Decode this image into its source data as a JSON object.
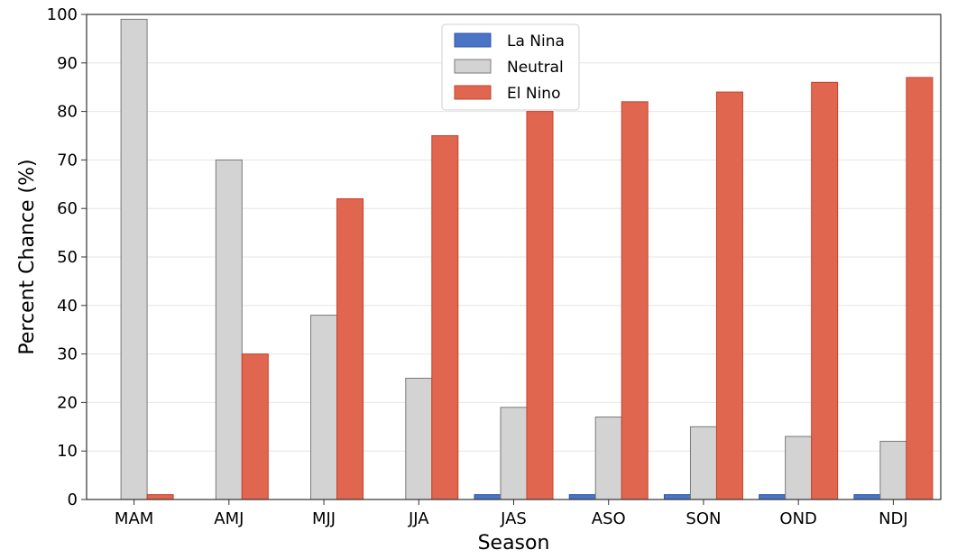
{
  "chart_data": {
    "type": "bar",
    "title": "",
    "xlabel": "Season",
    "ylabel": "Percent Chance (%)",
    "ylim": [
      0,
      100
    ],
    "yticks": [
      0,
      10,
      20,
      30,
      40,
      50,
      60,
      70,
      80,
      90,
      100
    ],
    "grid": "horizontal",
    "legend_position": "top-center",
    "categories": [
      "MAM",
      "AMJ",
      "MJJ",
      "JJA",
      "JAS",
      "ASO",
      "SON",
      "OND",
      "NDJ"
    ],
    "series": [
      {
        "name": "La Nina",
        "color": "#4a74c4",
        "edge": "#2d55a8",
        "values": [
          0,
          0,
          0,
          0,
          1,
          1,
          1,
          1,
          1
        ]
      },
      {
        "name": "Neutral",
        "color": "#d3d3d3",
        "edge": "#7a7a7a",
        "values": [
          99,
          70,
          38,
          25,
          19,
          17,
          15,
          13,
          12
        ]
      },
      {
        "name": "El Nino",
        "color": "#e06650",
        "edge": "#c8402b",
        "values": [
          1,
          30,
          62,
          75,
          80,
          82,
          84,
          86,
          87
        ]
      }
    ]
  }
}
